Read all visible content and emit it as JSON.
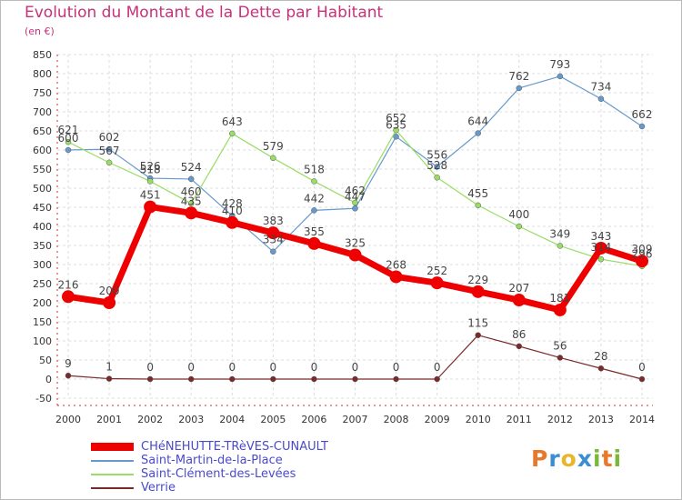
{
  "header": {
    "title": "Evolution du Montant de la Dette par Habitant",
    "unit": "(en €)"
  },
  "logo": {
    "text": "Proxiti",
    "letters": [
      {
        "ch": "P",
        "color": "#e8792b"
      },
      {
        "ch": "r",
        "color": "#3b8fd0"
      },
      {
        "ch": "o",
        "color": "#e8b62b"
      },
      {
        "ch": "x",
        "color": "#3b8fd0"
      },
      {
        "ch": "i",
        "color": "#7ab83a"
      },
      {
        "ch": "t",
        "color": "#e8792b"
      },
      {
        "ch": "i",
        "color": "#7ab83a"
      }
    ]
  },
  "chart_data": {
    "type": "line",
    "title": "Evolution du Montant de la Dette par Habitant",
    "ylabel": "(en €)",
    "xlabel": "",
    "categories": [
      "2000",
      "2001",
      "2002",
      "2003",
      "2004",
      "2005",
      "2006",
      "2007",
      "2008",
      "2009",
      "2010",
      "2011",
      "2012",
      "2013",
      "2014"
    ],
    "ylim": [
      -50,
      850
    ],
    "yticks": [
      -50,
      0,
      50,
      100,
      150,
      200,
      250,
      300,
      350,
      400,
      450,
      500,
      550,
      600,
      650,
      700,
      750,
      800,
      850
    ],
    "grid": true,
    "legend_position": "bottom-left",
    "series": [
      {
        "name": "CHéNEHUTTE-TRèVES-CUNAULT",
        "color": "#ee0000",
        "width": 7,
        "values": [
          216,
          200,
          451,
          435,
          410,
          383,
          355,
          325,
          268,
          252,
          229,
          207,
          181,
          343,
          309
        ]
      },
      {
        "name": "Saint-Martin-de-la-Place",
        "color": "#6699cc",
        "width": 1.2,
        "values": [
          600,
          602,
          526,
          524,
          428,
          334,
          442,
          447,
          635,
          556,
          644,
          762,
          793,
          734,
          662
        ]
      },
      {
        "name": "Saint-Clément-des-Levées",
        "color": "#99dd66",
        "width": 1.2,
        "values": [
          621,
          567,
          518,
          460,
          643,
          579,
          518,
          462,
          652,
          528,
          455,
          400,
          349,
          314,
          296
        ]
      },
      {
        "name": "Verrie",
        "color": "#7a2a2a",
        "width": 1.2,
        "values": [
          9,
          1,
          0,
          0,
          0,
          0,
          0,
          0,
          0,
          0,
          115,
          86,
          56,
          28,
          0
        ]
      }
    ]
  }
}
